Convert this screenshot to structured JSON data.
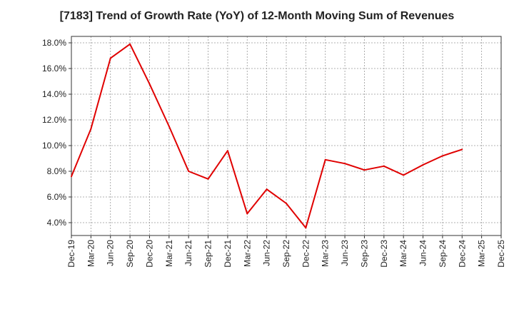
{
  "chart_data": {
    "type": "line",
    "title": "[7183]  Trend of Growth Rate (YoY) of 12-Month Moving Sum of Revenues",
    "xlabel": "",
    "ylabel": "",
    "x_ticks": [
      "Dec-19",
      "Mar-20",
      "Jun-20",
      "Sep-20",
      "Dec-20",
      "Mar-21",
      "Jun-21",
      "Sep-21",
      "Dec-21",
      "Mar-22",
      "Jun-22",
      "Sep-22",
      "Dec-22",
      "Mar-23",
      "Jun-23",
      "Sep-23",
      "Dec-23",
      "Mar-24",
      "Jun-24",
      "Sep-24",
      "Dec-24",
      "Mar-25",
      "Dec-25"
    ],
    "y_ticks": [
      "4.0%",
      "6.0%",
      "8.0%",
      "10.0%",
      "12.0%",
      "14.0%",
      "16.0%",
      "18.0%"
    ],
    "y_tick_values": [
      4,
      6,
      8,
      10,
      12,
      14,
      16,
      18
    ],
    "ylim": [
      3.0,
      18.5
    ],
    "grid": true,
    "legend": "none",
    "line_color": "#e00000",
    "series": [
      {
        "values": [
          7.6,
          11.3,
          16.8,
          17.9,
          14.8,
          11.5,
          8.0,
          7.4,
          9.6,
          4.7,
          6.6,
          5.5,
          3.6,
          8.9,
          8.6,
          8.1,
          8.4,
          7.7,
          8.5,
          9.2,
          9.7
        ]
      }
    ]
  }
}
